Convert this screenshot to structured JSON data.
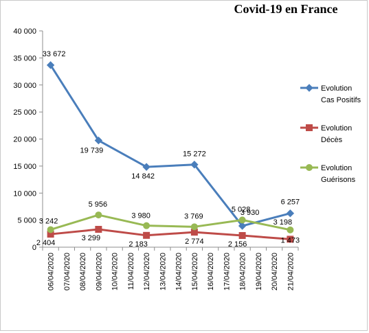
{
  "chart_data": {
    "type": "line",
    "title": "Covid-19 en France",
    "xlabel": "",
    "ylabel": "",
    "ylim": [
      0,
      40000
    ],
    "yticks": [
      "0",
      "5 000",
      "10 000",
      "15 000",
      "20 000",
      "25 000",
      "30 000",
      "35 000",
      "40 000"
    ],
    "grid": false,
    "legend_position": "right",
    "categories": [
      "06/04/2020",
      "07/04/2020",
      "08/04/2020",
      "09/04/2020",
      "10/04/2020",
      "11/04/2020",
      "12/04/2020",
      "13/04/2020",
      "14/04/2020",
      "15/04/2020",
      "16/04/2020",
      "17/04/2020",
      "18/04/2020",
      "19/04/2020",
      "20/04/2020",
      "21/04/2020"
    ],
    "series": [
      {
        "name_lines": [
          "Evolution",
          "Cas Positifs"
        ],
        "color": "#4a7ebb",
        "marker": "diamond",
        "points": [
          {
            "x": "06/04/2020",
            "y": 33672,
            "label": "33 672"
          },
          {
            "x": "09/04/2020",
            "y": 19739,
            "label": "19 739"
          },
          {
            "x": "12/04/2020",
            "y": 14842,
            "label": "14 842"
          },
          {
            "x": "15/04/2020",
            "y": 15272,
            "label": "15 272"
          },
          {
            "x": "18/04/2020",
            "y": 3930,
            "label": "3 930"
          },
          {
            "x": "21/04/2020",
            "y": 6257,
            "label": "6 257"
          }
        ]
      },
      {
        "name_lines": [
          "Evolution",
          "Décès"
        ],
        "color": "#be4b48",
        "marker": "square",
        "points": [
          {
            "x": "06/04/2020",
            "y": 2404,
            "label": "2 404"
          },
          {
            "x": "09/04/2020",
            "y": 3299,
            "label": "3 299"
          },
          {
            "x": "12/04/2020",
            "y": 2183,
            "label": "2 183"
          },
          {
            "x": "15/04/2020",
            "y": 2774,
            "label": "2 774"
          },
          {
            "x": "18/04/2020",
            "y": 2156,
            "label": "2 156"
          },
          {
            "x": "21/04/2020",
            "y": 1473,
            "label": "1 473"
          }
        ]
      },
      {
        "name_lines": [
          "Evolution",
          "Guérisons"
        ],
        "color": "#98b954",
        "marker": "circle",
        "points": [
          {
            "x": "06/04/2020",
            "y": 3242,
            "label": "3 242"
          },
          {
            "x": "09/04/2020",
            "y": 5956,
            "label": "5 956"
          },
          {
            "x": "12/04/2020",
            "y": 3980,
            "label": "3 980"
          },
          {
            "x": "15/04/2020",
            "y": 3769,
            "label": "3 769"
          },
          {
            "x": "18/04/2020",
            "y": 5028,
            "label": "5 028"
          },
          {
            "x": "21/04/2020",
            "y": 3198,
            "label": "3 198"
          }
        ]
      }
    ]
  }
}
